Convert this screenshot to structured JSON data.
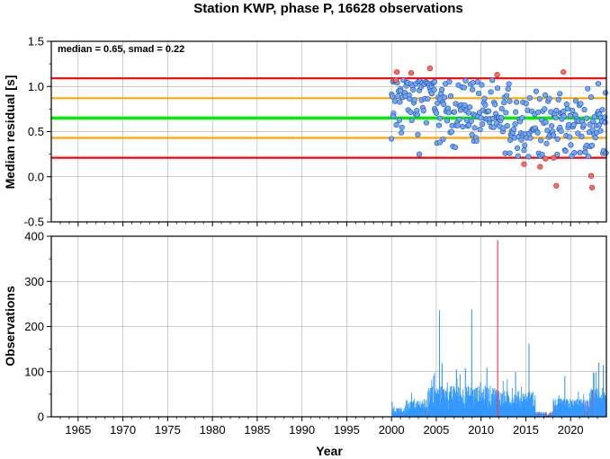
{
  "title": "Station KWP, phase P, 16628 observations",
  "colors": {
    "median_line": "#00ee00",
    "smad_line": "#ffa500",
    "limit_line": "#ff0000",
    "point_normal": "#6fa8f5",
    "point_outlier": "#ff6a60",
    "bar_normal": "#3399ff",
    "bar_outlier": "#ff3333",
    "grid": "#999999"
  },
  "chart_data": [
    {
      "type": "scatter",
      "panel": "residuals",
      "ylabel": "Median residual [s]",
      "xlim": [
        1962,
        2024
      ],
      "ylim": [
        -0.5,
        1.5
      ],
      "y_ticks": [
        "-0.5",
        "0.0",
        "0.5",
        "1.0",
        "1.5"
      ],
      "annotation": "median = 0.65, smad = 0.22",
      "median": 0.65,
      "smad": 0.22,
      "reference_lines": [
        {
          "kind": "median",
          "y": 0.65
        },
        {
          "kind": "median+smad",
          "y": 0.87
        },
        {
          "kind": "median-smad",
          "y": 0.43
        },
        {
          "kind": "median+2smad",
          "y": 1.09
        },
        {
          "kind": "median-2smad",
          "y": 0.21
        }
      ],
      "grid": true,
      "outliers": [
        {
          "x": 2000.6,
          "y": 1.16
        },
        {
          "x": 2000.5,
          "y": 1.07
        },
        {
          "x": 2002.2,
          "y": 1.15
        },
        {
          "x": 2004.3,
          "y": 1.2
        },
        {
          "x": 2011.8,
          "y": 1.13
        },
        {
          "x": 2014.8,
          "y": 0.14
        },
        {
          "x": 2016.6,
          "y": 0.11
        },
        {
          "x": 2017.2,
          "y": 0.2
        },
        {
          "x": 2018.1,
          "y": 0.21
        },
        {
          "x": 2018.4,
          "y": -0.1
        },
        {
          "x": 2019.2,
          "y": 1.16
        },
        {
          "x": 2022.3,
          "y": 0.01
        },
        {
          "x": 2022.4,
          "y": -0.12
        }
      ],
      "points_sample": [
        {
          "x": 2000.0,
          "y": 0.42
        },
        {
          "x": 2000.2,
          "y": 0.67
        },
        {
          "x": 2001.0,
          "y": 0.95
        },
        {
          "x": 2003.1,
          "y": 0.25
        },
        {
          "x": 2004.8,
          "y": 1.05
        },
        {
          "x": 2005.4,
          "y": 0.38
        },
        {
          "x": 2009.1,
          "y": 1.04
        },
        {
          "x": 2013.2,
          "y": 0.26
        },
        {
          "x": 2018.8,
          "y": 0.92
        },
        {
          "x": 2023.1,
          "y": 1.03
        },
        {
          "x": 2023.9,
          "y": 0.93
        }
      ]
    },
    {
      "type": "bar",
      "panel": "observations",
      "xlabel": "Year",
      "ylabel": "Observations",
      "xlim": [
        1962,
        2024
      ],
      "ylim": [
        0,
        400
      ],
      "y_ticks": [
        "0",
        "100",
        "200",
        "300",
        "400"
      ],
      "x_ticks": [
        "1965",
        "1970",
        "1975",
        "1980",
        "1985",
        "1990",
        "1995",
        "2000",
        "2005",
        "2010",
        "2015",
        "2020"
      ],
      "grid": true,
      "peaks": [
        {
          "x": 2005.3,
          "y": 236
        },
        {
          "x": 2008.9,
          "y": 238
        },
        {
          "x": 2011.8,
          "y": 392,
          "outlier": true
        },
        {
          "x": 2005.6,
          "y": 118
        },
        {
          "x": 2007.2,
          "y": 105
        },
        {
          "x": 2008.2,
          "y": 108
        },
        {
          "x": 2010.6,
          "y": 108
        },
        {
          "x": 2013.8,
          "y": 100
        },
        {
          "x": 2015.3,
          "y": 162
        },
        {
          "x": 2019.3,
          "y": 90
        },
        {
          "x": 2023.1,
          "y": 120
        },
        {
          "x": 2023.6,
          "y": 115
        }
      ]
    }
  ]
}
